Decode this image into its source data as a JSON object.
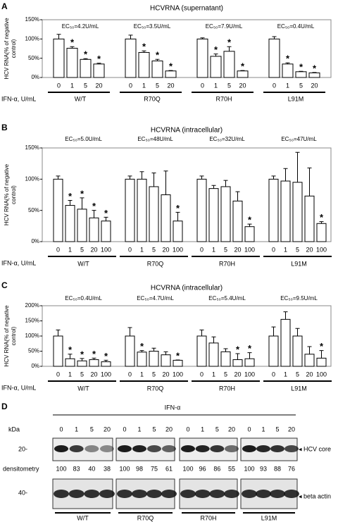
{
  "chart_data": [
    {
      "type": "bar",
      "panel": "A",
      "title": "HCVRNA (supernatant)",
      "y_label_lines": [
        "HCV RNA(% of negative",
        "control)"
      ],
      "x_label": "IFN-α, U/mL",
      "ylim": [
        0,
        150
      ],
      "yticks": [
        {
          "value": 0,
          "label": "0%"
        },
        {
          "value": 50,
          "label": "50%"
        },
        {
          "value": 100,
          "label": "100%"
        },
        {
          "value": 150,
          "label": "150%"
        }
      ],
      "significance_mark": "*",
      "color": "#ffffff",
      "groups": [
        {
          "name": "W/T",
          "ec50": "EC₅₀=4.2U/mL",
          "categories": [
            "0",
            "1",
            "5",
            "20"
          ],
          "values": [
            100,
            76,
            47,
            35
          ],
          "errors": [
            12,
            4,
            2,
            2
          ],
          "significant": [
            false,
            true,
            true,
            true
          ]
        },
        {
          "name": "R70Q",
          "ec50": "EC₅₀=3.5U/mL",
          "categories": [
            "0",
            "1",
            "5",
            "20"
          ],
          "values": [
            100,
            65,
            43,
            17
          ],
          "errors": [
            10,
            4,
            4,
            1
          ],
          "significant": [
            false,
            true,
            true,
            true
          ]
        },
        {
          "name": "R70H",
          "ec50": "EC₅₀=7.9U/mL",
          "categories": [
            "0",
            "1",
            "5",
            "20"
          ],
          "values": [
            100,
            55,
            68,
            17
          ],
          "errors": [
            3,
            6,
            12,
            1
          ],
          "significant": [
            false,
            true,
            true,
            true
          ]
        },
        {
          "name": "L91M",
          "ec50": "EC₅₀=0.4U/mL",
          "categories": [
            "0",
            "1",
            "5",
            "20"
          ],
          "values": [
            100,
            35,
            15,
            12
          ],
          "errors": [
            6,
            3,
            1,
            1
          ],
          "significant": [
            false,
            true,
            true,
            true
          ]
        }
      ]
    },
    {
      "type": "bar",
      "panel": "B",
      "title": "HCVRNA (intracellular)",
      "y_label_lines": [
        "HCV RNA(% of negative",
        "control)"
      ],
      "x_label": "IFN-α, U/mL",
      "ylim": [
        0,
        150
      ],
      "yticks": [
        {
          "value": 0,
          "label": "0%"
        },
        {
          "value": 50,
          "label": "50%"
        },
        {
          "value": 100,
          "label": "100%"
        },
        {
          "value": 150,
          "label": "150%"
        }
      ],
      "significance_mark": "*",
      "color": "#ffffff",
      "groups": [
        {
          "name": "W/T",
          "ec50": "EC₅₀=5.0U/mL",
          "categories": [
            "0",
            "1",
            "5",
            "20",
            "100"
          ],
          "values": [
            100,
            58,
            52,
            38,
            33
          ],
          "errors": [
            5,
            8,
            18,
            12,
            6
          ],
          "significant": [
            false,
            true,
            true,
            true,
            true
          ]
        },
        {
          "name": "R70Q",
          "ec50": "EC₅₀=48U/mL",
          "categories": [
            "0",
            "1",
            "5",
            "20",
            "100"
          ],
          "values": [
            100,
            100,
            88,
            75,
            33
          ],
          "errors": [
            5,
            12,
            22,
            38,
            14
          ],
          "significant": [
            false,
            false,
            false,
            false,
            true
          ]
        },
        {
          "name": "R70H",
          "ec50": "EC₅₀=32U/mL",
          "categories": [
            "0",
            "1",
            "5",
            "20",
            "100"
          ],
          "values": [
            100,
            85,
            88,
            65,
            24
          ],
          "errors": [
            5,
            5,
            10,
            15,
            4
          ],
          "significant": [
            false,
            false,
            false,
            false,
            true
          ]
        },
        {
          "name": "L91M",
          "ec50": "EC₅₀=47U/mL",
          "categories": [
            "0",
            "1",
            "5",
            "20",
            "100"
          ],
          "values": [
            100,
            97,
            95,
            73,
            29
          ],
          "errors": [
            5,
            20,
            48,
            45,
            3
          ],
          "significant": [
            false,
            false,
            false,
            false,
            true
          ]
        }
      ]
    },
    {
      "type": "bar",
      "panel": "C",
      "title": "HCVRNA (intracellular)",
      "y_label_lines": [
        "HCV RNA(% of negative",
        "control)"
      ],
      "x_label": "IFN-α, U/mL",
      "ylim": [
        0,
        200
      ],
      "yticks": [
        {
          "value": 0,
          "label": "0%"
        },
        {
          "value": 50,
          "label": "50%"
        },
        {
          "value": 100,
          "label": "100%"
        },
        {
          "value": 150,
          "label": "150%"
        },
        {
          "value": 200,
          "label": "200%"
        }
      ],
      "significance_mark": "*",
      "color": "#ffffff",
      "groups": [
        {
          "name": "W/T",
          "ec50": "EC₅₀=0.4U/mL",
          "categories": [
            "0",
            "1",
            "5",
            "20",
            "100"
          ],
          "values": [
            100,
            25,
            18,
            22,
            15
          ],
          "errors": [
            20,
            15,
            8,
            5,
            5
          ],
          "significant": [
            false,
            true,
            true,
            true,
            true
          ]
        },
        {
          "name": "R70Q",
          "ec50": "EC₅₀=4.7U/mL",
          "categories": [
            "0",
            "1",
            "5",
            "20",
            "100"
          ],
          "values": [
            100,
            47,
            50,
            38,
            20
          ],
          "errors": [
            28,
            5,
            10,
            10,
            1
          ],
          "significant": [
            false,
            true,
            false,
            false,
            true
          ]
        },
        {
          "name": "R70H",
          "ec50": "EC₅₀=5.4U/mL",
          "categories": [
            "0",
            "1",
            "5",
            "20",
            "100"
          ],
          "values": [
            100,
            77,
            48,
            22,
            25
          ],
          "errors": [
            20,
            20,
            10,
            20,
            20
          ],
          "significant": [
            false,
            false,
            false,
            true,
            true
          ]
        },
        {
          "name": "L91M",
          "ec50": "EC₅₀=9.5U/mL",
          "categories": [
            "0",
            "1",
            "5",
            "20",
            "100"
          ],
          "values": [
            100,
            155,
            100,
            40,
            27
          ],
          "errors": [
            30,
            25,
            25,
            25,
            25
          ],
          "significant": [
            false,
            false,
            false,
            false,
            true
          ]
        }
      ]
    }
  ],
  "blot": {
    "panel": "D",
    "treatment": "IFN-α",
    "kda_label": "kDa",
    "doses": [
      "0",
      "1",
      "5",
      "20"
    ],
    "groups": [
      "W/T",
      "R70Q",
      "R70H",
      "L91M"
    ],
    "markers": [
      "20-",
      "40-"
    ],
    "band_labels": [
      "◂ HCV core",
      "◂ beta actin"
    ],
    "densitometry_label": "densitometry",
    "densitometry": [
      [
        100,
        83,
        40,
        38
      ],
      [
        100,
        98,
        75,
        61
      ],
      [
        100,
        96,
        86,
        55
      ],
      [
        100,
        93,
        88,
        76
      ]
    ]
  }
}
